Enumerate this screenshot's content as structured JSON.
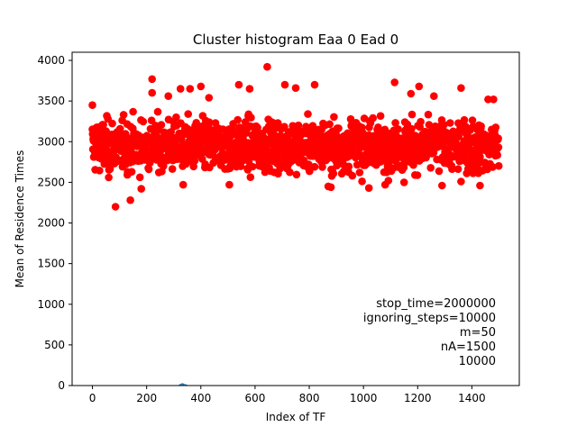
{
  "chart_data": {
    "type": "scatter",
    "title": "Cluster histogram Eaa 0 Ead 0",
    "xlabel": "Index of TF",
    "ylabel": "Mean of Residence Times",
    "xlim": [
      -75,
      1575
    ],
    "ylim": [
      0,
      4100
    ],
    "x_ticks": [
      "0",
      "200",
      "400",
      "600",
      "800",
      "1000",
      "1200",
      "1400"
    ],
    "y_ticks": [
      "0",
      "500",
      "1000",
      "1500",
      "2000",
      "2500",
      "3000",
      "3500",
      "4000"
    ],
    "grid": false,
    "marker_color": "#ff0000",
    "histogram_color": "#1f77b4",
    "series": [
      {
        "description_points_count": 1500,
        "x_range": [
          0,
          1500
        ],
        "y_center": 2950,
        "y_band": [
          2500,
          3400
        ],
        "outliers": [
          [
            0,
            3450
          ],
          [
            60,
            2560
          ],
          [
            85,
            2200
          ],
          [
            140,
            2280
          ],
          [
            180,
            2420
          ],
          [
            220,
            3770
          ],
          [
            220,
            3600
          ],
          [
            280,
            3560
          ],
          [
            325,
            3650
          ],
          [
            335,
            2470
          ],
          [
            360,
            3650
          ],
          [
            400,
            3680
          ],
          [
            430,
            3540
          ],
          [
            505,
            2470
          ],
          [
            540,
            3700
          ],
          [
            580,
            3650
          ],
          [
            645,
            3920
          ],
          [
            710,
            3700
          ],
          [
            750,
            3660
          ],
          [
            820,
            3700
          ],
          [
            870,
            2450
          ],
          [
            880,
            2440
          ],
          [
            1020,
            2430
          ],
          [
            1080,
            2470
          ],
          [
            1115,
            3730
          ],
          [
            1150,
            2500
          ],
          [
            1175,
            3590
          ],
          [
            1205,
            3680
          ],
          [
            1260,
            3560
          ],
          [
            1290,
            2460
          ],
          [
            1360,
            3660
          ],
          [
            1360,
            2510
          ],
          [
            1430,
            2460
          ],
          [
            1460,
            3520
          ],
          [
            1480,
            3520
          ]
        ]
      }
    ],
    "histogram": {
      "x_center": 335,
      "bins_x": [
        318,
        322,
        326,
        330,
        334,
        338,
        342,
        346
      ],
      "bins_height": [
        10,
        20,
        25,
        30,
        25,
        20,
        15,
        10
      ]
    },
    "annotations": [
      "stop_time=2000000",
      "ignoring_steps=10000",
      "m=50",
      "nA=1500",
      "10000"
    ]
  }
}
